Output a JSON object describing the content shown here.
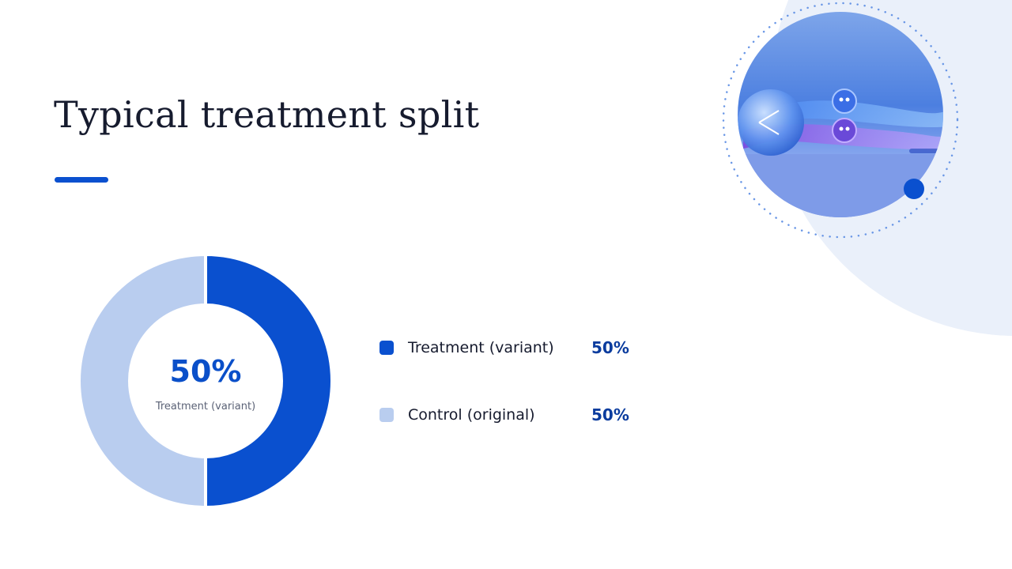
{
  "slide": {
    "title": "Typical treatment split",
    "center": {
      "value": "50%",
      "label": "Treatment (variant)"
    },
    "legend": [
      {
        "label": "Treatment (variant)",
        "value": "50%",
        "color": "#0a50cf"
      },
      {
        "label": "Control (original)",
        "value": "50%",
        "color": "#b9cdef"
      }
    ],
    "illustration": {
      "icon": "ab-split-photo",
      "accent_dot_color": "#0a50cf"
    }
  },
  "chart_data": {
    "type": "pie",
    "variant": "donut",
    "title": "Typical treatment split",
    "categories": [
      "Treatment (variant)",
      "Control (original)"
    ],
    "values": [
      50,
      50
    ],
    "colors": [
      "#0a50cf",
      "#b9cdef"
    ],
    "legend": "right"
  }
}
